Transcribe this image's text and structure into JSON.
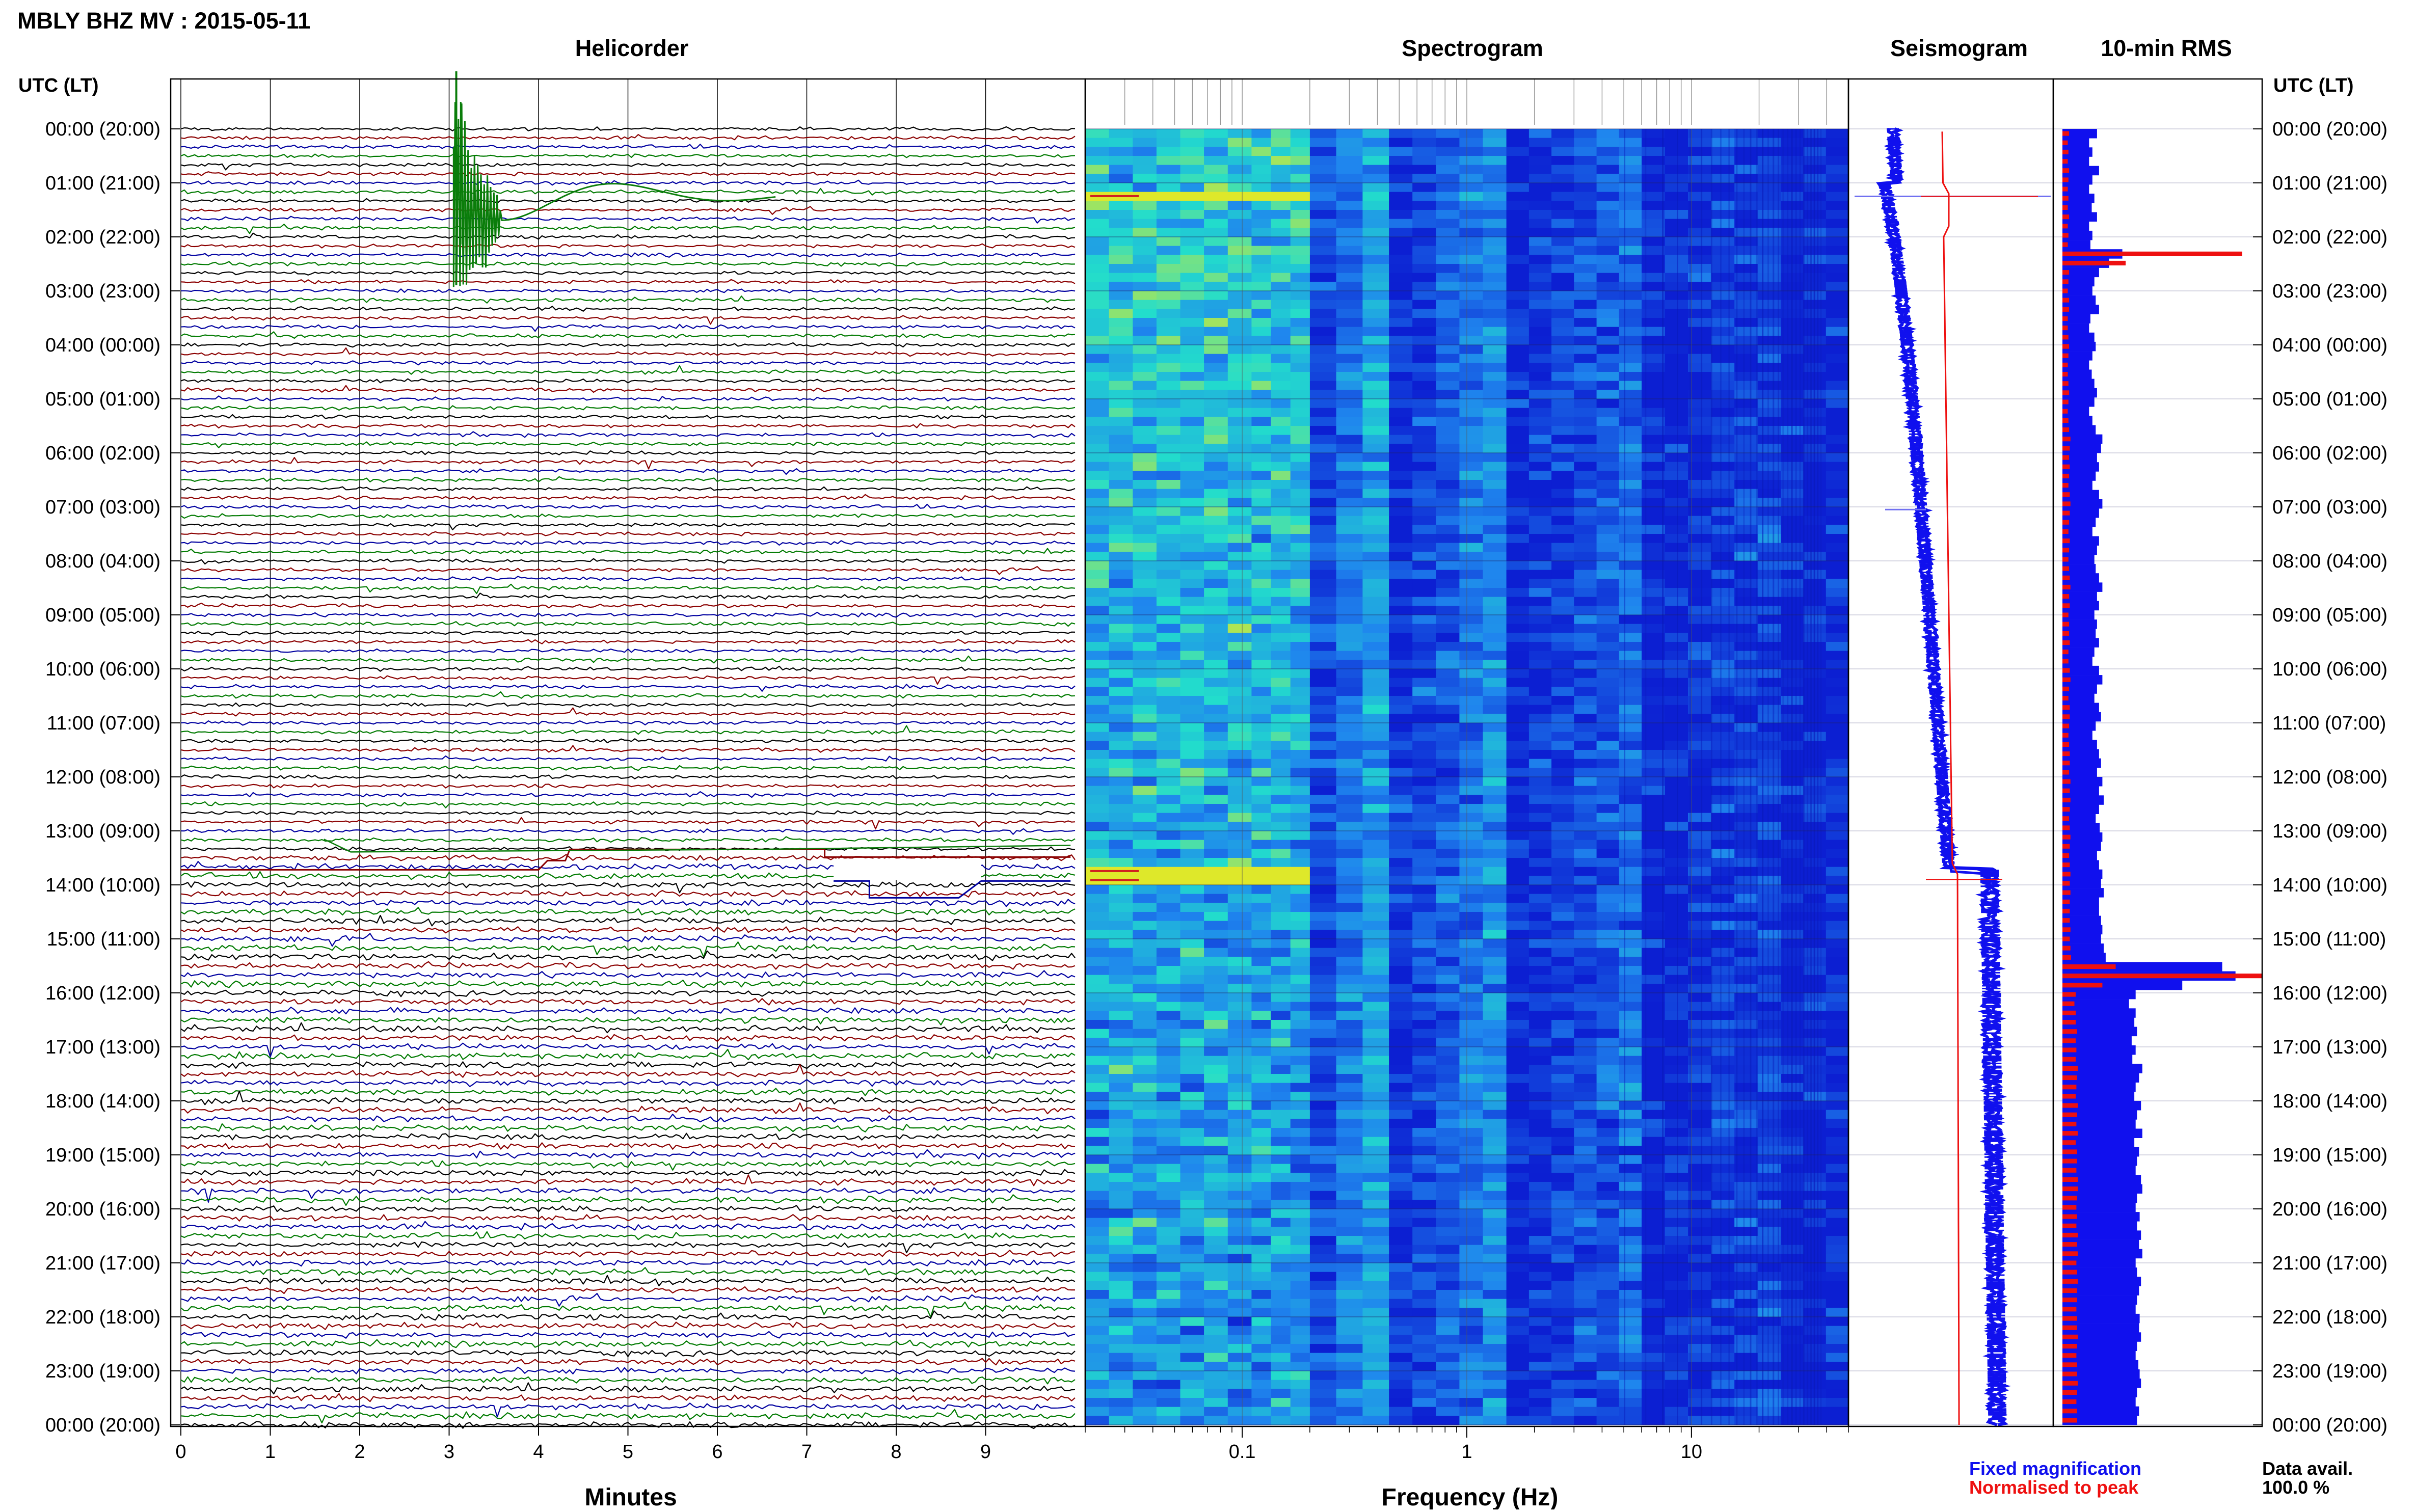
{
  "header": {
    "station_title": "MBLY BHZ MV : 2015-05-11",
    "left_axis_title": "UTC (LT)",
    "right_axis_title": "UTC (LT)"
  },
  "panels": {
    "helicorder_title": "Helicorder",
    "spectrogram_title": "Spectrogram",
    "seismogram_title": "Seismogram",
    "rms_title": "10-min RMS"
  },
  "time_labels": [
    "00:00 (20:00)",
    "01:00 (21:00)",
    "02:00 (22:00)",
    "03:00 (23:00)",
    "04:00 (00:00)",
    "05:00 (01:00)",
    "06:00 (02:00)",
    "07:00 (03:00)",
    "08:00 (04:00)",
    "09:00 (05:00)",
    "10:00 (06:00)",
    "11:00 (07:00)",
    "12:00 (08:00)",
    "13:00 (09:00)",
    "14:00 (10:00)",
    "15:00 (11:00)",
    "16:00 (12:00)",
    "17:00 (13:00)",
    "18:00 (14:00)",
    "19:00 (15:00)",
    "20:00 (16:00)",
    "21:00 (17:00)",
    "22:00 (18:00)",
    "23:00 (19:00)",
    "00:00 (20:00)"
  ],
  "helicorder_axis": {
    "label": "Minutes",
    "ticks": [
      "0",
      "1",
      "2",
      "3",
      "4",
      "5",
      "6",
      "7",
      "8",
      "9"
    ]
  },
  "spectrogram_axis": {
    "label": "Frequency (Hz)",
    "ticks": [
      "0.1",
      "1",
      "10"
    ]
  },
  "legend": {
    "fixed": "Fixed magnification",
    "normalised": "Normalised to peak",
    "fixed_color": "#1010ee",
    "normalised_color": "#ee1010"
  },
  "data_availability": {
    "label": "Data avail.",
    "value": "100.0 %"
  },
  "chart_data": {
    "type": "helicorder",
    "title": "MBLY BHZ MV : 2015-05-11",
    "time_range_utc_hours": [
      0,
      24
    ],
    "helicorder": {
      "trace_interval_minutes": 10,
      "trace_colors": [
        "#000000",
        "#8b0000",
        "#0000a0",
        "#007a00"
      ],
      "x_range_minutes": [
        0,
        10
      ]
    },
    "spectrogram": {
      "x_scale": "log",
      "x_range_hz": [
        0.02,
        50
      ],
      "colors": [
        "#dfe82a",
        "#22ddcc",
        "#1f86ee",
        "#0c1fd2"
      ]
    },
    "rms_10min": {
      "fixed_magnification": [
        52,
        40,
        45,
        40,
        55,
        45,
        40,
        48,
        44,
        52,
        40,
        45,
        42,
        90,
        70,
        55,
        48,
        45,
        50,
        55,
        42,
        40,
        48,
        50,
        45,
        40,
        44,
        48,
        52,
        48,
        40,
        45,
        50,
        60,
        58,
        52,
        55,
        50,
        45,
        55,
        60,
        55,
        50,
        45,
        55,
        52,
        48,
        50,
        55,
        60,
        52,
        55,
        48,
        52,
        50,
        55,
        48,
        45,
        55,
        60,
        52,
        48,
        55,
        58,
        50,
        45,
        52,
        55,
        58,
        52,
        60,
        55,
        62,
        55,
        50,
        56,
        60,
        58,
        52,
        55,
        60,
        58,
        62,
        55,
        55,
        58,
        60,
        58,
        62,
        65,
        240,
        260,
        180,
        110,
        100,
        110,
        108,
        112,
        104,
        110,
        105,
        120,
        115,
        110,
        108,
        118,
        112,
        110,
        120,
        108,
        115,
        112,
        110,
        118,
        120,
        112,
        110,
        116,
        112,
        118,
        115,
        120,
        110,
        112,
        118,
        115,
        112,
        110,
        116,
        115,
        118,
        112,
        110,
        114,
        116,
        118,
        112,
        110,
        115,
        112
      ],
      "normalised_to_peak": [
        10,
        8,
        9,
        8,
        10,
        9,
        8,
        9,
        8,
        10,
        8,
        9,
        8,
        270,
        95,
        10,
        9,
        8,
        10,
        10,
        8,
        8,
        9,
        10,
        9,
        8,
        8,
        9,
        10,
        9,
        8,
        9,
        10,
        12,
        11,
        10,
        11,
        10,
        9,
        11,
        12,
        11,
        10,
        9,
        11,
        10,
        9,
        10,
        11,
        12,
        10,
        11,
        9,
        10,
        10,
        11,
        9,
        9,
        11,
        12,
        10,
        9,
        11,
        11,
        10,
        9,
        10,
        11,
        11,
        10,
        12,
        11,
        12,
        11,
        10,
        11,
        12,
        11,
        10,
        11,
        12,
        11,
        12,
        11,
        11,
        11,
        12,
        11,
        12,
        13,
        80,
        300,
        60,
        20,
        18,
        20,
        20,
        22,
        20,
        21,
        20,
        23,
        22,
        21,
        20,
        23,
        22,
        21,
        23,
        20,
        22,
        22,
        21,
        23,
        23,
        22,
        21,
        22,
        21,
        23,
        22,
        23,
        21,
        22,
        23,
        22,
        22,
        21,
        22,
        22,
        23,
        22,
        21,
        22,
        22,
        23,
        22,
        21,
        22,
        22
      ]
    }
  }
}
